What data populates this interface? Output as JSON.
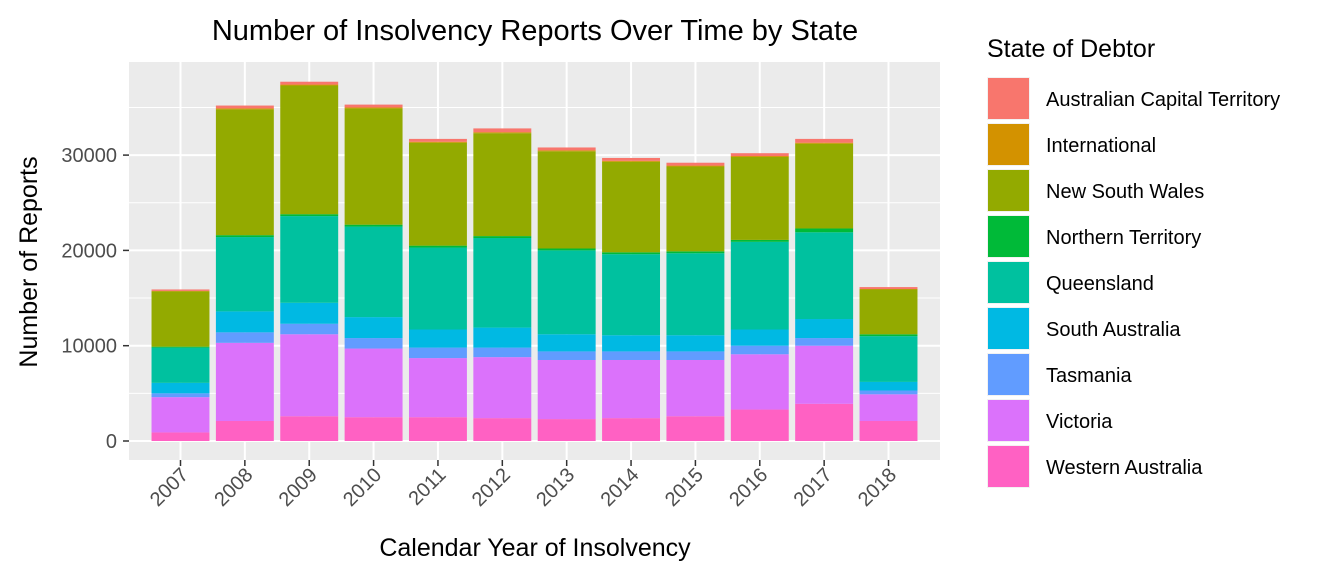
{
  "chart_data": {
    "type": "bar",
    "stacked": true,
    "title": "Number of Insolvency Reports Over Time by State",
    "xlabel": "Calendar Year of Insolvency",
    "ylabel": "Number of Reports",
    "ylim": [
      0,
      40000
    ],
    "yticks": [
      0,
      10000,
      20000,
      30000
    ],
    "grid": true,
    "legend_title": "State of Debtor",
    "legend_position": "right",
    "categories": [
      "2007",
      "2008",
      "2009",
      "2010",
      "2011",
      "2012",
      "2013",
      "2014",
      "2015",
      "2016",
      "2017",
      "2018"
    ],
    "series": [
      {
        "name": "Western Australia",
        "color": "#FF61C3",
        "values": [
          900,
          2100,
          2600,
          2500,
          2500,
          2400,
          2300,
          2400,
          2600,
          3300,
          3900,
          2100
        ]
      },
      {
        "name": "Victoria",
        "color": "#DB72FB",
        "values": [
          3700,
          8200,
          8600,
          7200,
          6200,
          6400,
          6200,
          6100,
          5900,
          5800,
          6100,
          2800
        ]
      },
      {
        "name": "Tasmania",
        "color": "#619CFF",
        "values": [
          400,
          1100,
          1100,
          1100,
          1100,
          1000,
          900,
          900,
          900,
          900,
          800,
          400
        ]
      },
      {
        "name": "South Australia",
        "color": "#00B9E3",
        "values": [
          1100,
          2200,
          2200,
          2200,
          1900,
          2100,
          1800,
          1700,
          1700,
          1700,
          2000,
          900
        ]
      },
      {
        "name": "Queensland",
        "color": "#00C19F",
        "values": [
          3700,
          7800,
          9100,
          9500,
          8600,
          9400,
          8800,
          8500,
          8600,
          9200,
          9100,
          4800
        ]
      },
      {
        "name": "Northern Territory",
        "color": "#00BA38",
        "values": [
          100,
          200,
          200,
          200,
          200,
          200,
          200,
          200,
          200,
          200,
          400,
          200
        ]
      },
      {
        "name": "New South Wales",
        "color": "#93AA00",
        "values": [
          5800,
          13200,
          13500,
          12200,
          10800,
          10800,
          10200,
          9500,
          8900,
          8700,
          8900,
          4700
        ]
      },
      {
        "name": "International",
        "color": "#D39200",
        "values": [
          50,
          100,
          100,
          100,
          100,
          100,
          100,
          100,
          100,
          100,
          100,
          50
        ]
      },
      {
        "name": "Australian Capital Territory",
        "color": "#F8766D",
        "values": [
          150,
          300,
          300,
          300,
          300,
          400,
          300,
          300,
          300,
          300,
          400,
          200
        ]
      }
    ],
    "legend_order": [
      "Australian Capital Territory",
      "International",
      "New South Wales",
      "Northern Territory",
      "Queensland",
      "South Australia",
      "Tasmania",
      "Victoria",
      "Western Australia"
    ]
  }
}
